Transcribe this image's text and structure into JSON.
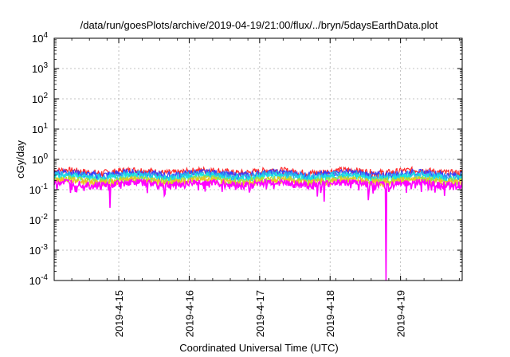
{
  "chart_data": {
    "type": "line",
    "title": "/data/run/goesPlots/archive/2019-04-19/21:00/flux/../bryn/5daysEarthData.plot",
    "xlabel": "Coordinated Universal Time (UTC)",
    "ylabel": "cGy/day",
    "yscale": "log",
    "ylim": [
      0.0001,
      10000
    ],
    "y_ticks": [
      {
        "value": 0.0001,
        "base": "10",
        "exp": "-4"
      },
      {
        "value": 0.001,
        "base": "10",
        "exp": "-3"
      },
      {
        "value": 0.01,
        "base": "10",
        "exp": "-2"
      },
      {
        "value": 0.1,
        "base": "10",
        "exp": "-1"
      },
      {
        "value": 1,
        "base": "10",
        "exp": "0"
      },
      {
        "value": 10,
        "base": "10",
        "exp": "1"
      },
      {
        "value": 100,
        "base": "10",
        "exp": "2"
      },
      {
        "value": 1000,
        "base": "10",
        "exp": "3"
      },
      {
        "value": 10000,
        "base": "10",
        "exp": "4"
      }
    ],
    "xlim": [
      "2019-04-14 02:00",
      "2019-04-19 21:00"
    ],
    "x_ticks": [
      "2019-4-15",
      "2019-4-16",
      "2019-4-17",
      "2019-4-18",
      "2019-4-19"
    ],
    "grid": true,
    "series": [
      {
        "color": "#ff2a2a",
        "base": 0.4
      },
      {
        "color": "#3a3aff",
        "base": 0.34
      },
      {
        "color": "#29a9f0",
        "base": 0.3
      },
      {
        "color": "#18e6e0",
        "base": 0.26
      },
      {
        "color": "#a0e040",
        "base": 0.21
      },
      {
        "color": "#f0c020",
        "base": 0.19
      },
      {
        "color": "#ff00ff",
        "base": 0.16
      }
    ],
    "dips": [
      {
        "x": "2019-04-14 21:00",
        "y": 0.025
      },
      {
        "x": "2019-04-17 22:00",
        "y": 0.04
      },
      {
        "x": "2019-04-18 13:00",
        "y": 0.045
      },
      {
        "x": "2019-04-18 19:00",
        "y": 0.0001
      }
    ]
  }
}
